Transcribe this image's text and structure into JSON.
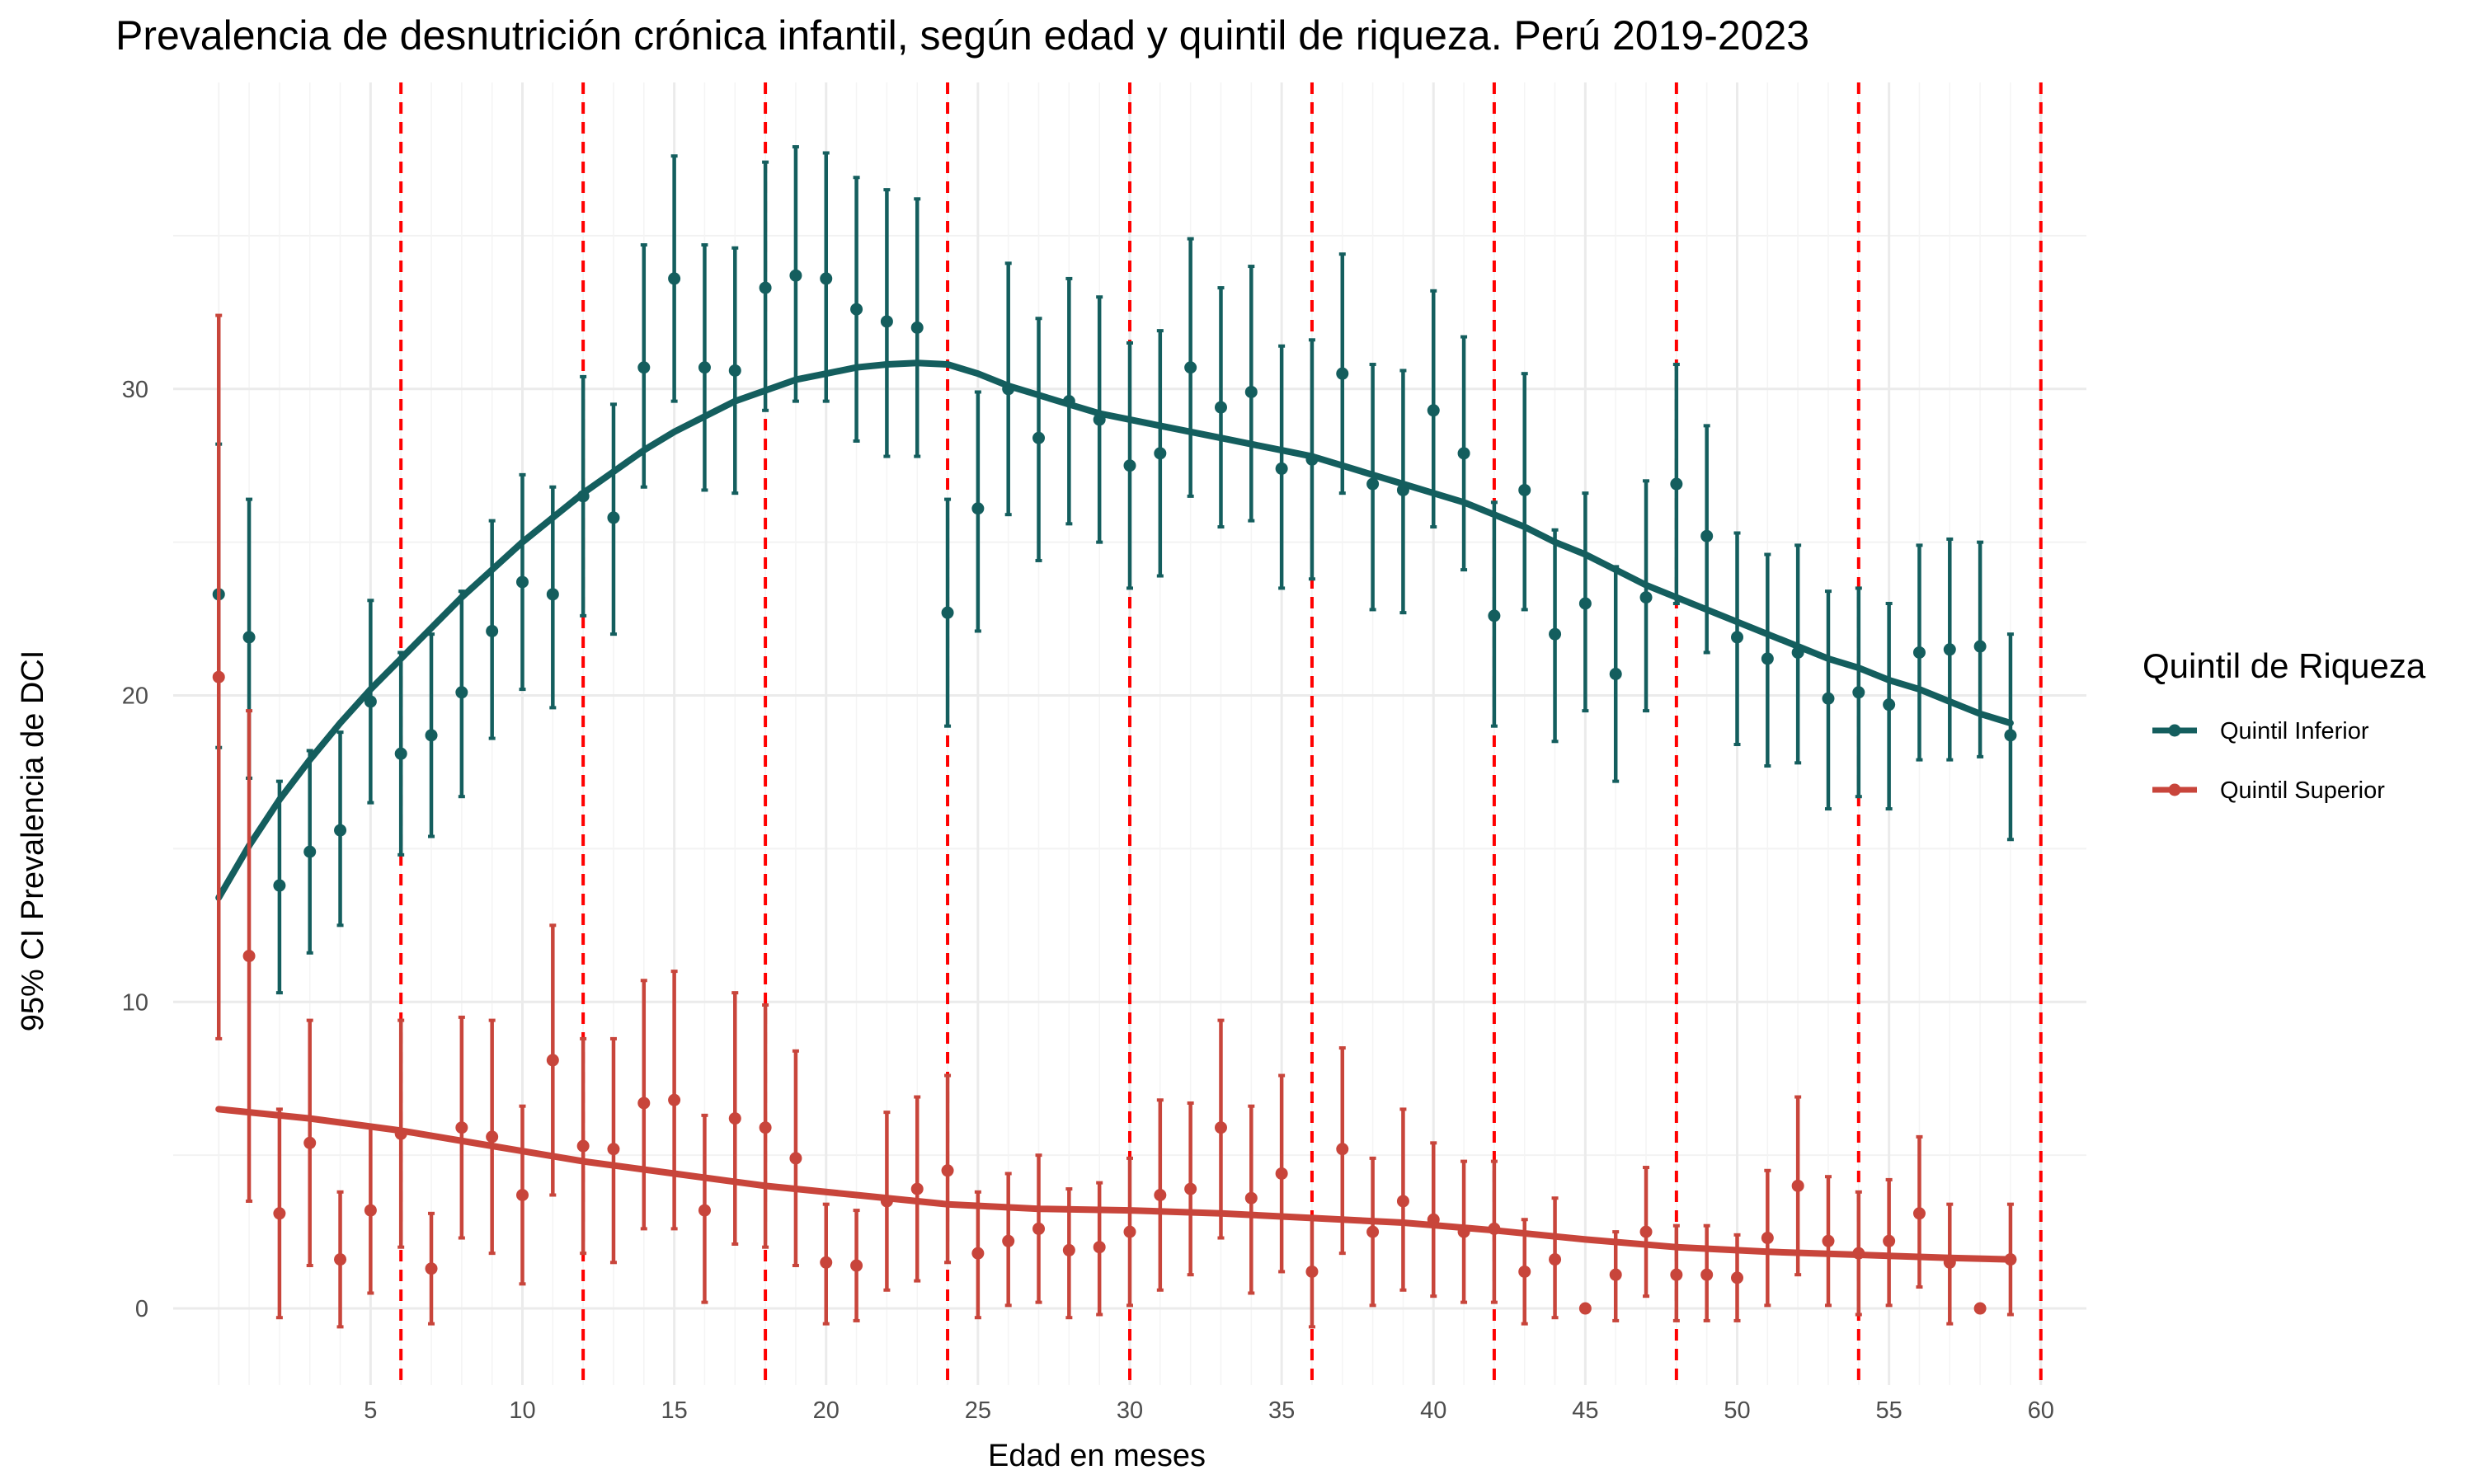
{
  "chart_data": {
    "type": "scatter",
    "title": "Prevalencia de desnutrición crónica infantil, según edad y quintil de riqueza. Perú 2019-2023",
    "xlabel": "Edad en meses",
    "ylabel": "95% CI Prevalencia de DCI",
    "xlim": [
      -1.5,
      61.5
    ],
    "ylim": [
      -2.5,
      40
    ],
    "x_ticks": [
      5,
      10,
      15,
      20,
      25,
      30,
      35,
      40,
      45,
      50,
      55,
      60
    ],
    "x_tick_labels": [
      "5",
      "10",
      "15",
      "20",
      "25",
      "30",
      "35",
      "40",
      "45",
      "50",
      "55",
      "60"
    ],
    "y_ticks": [
      0,
      10,
      20,
      30
    ],
    "y_tick_labels": [
      "0",
      "10",
      "20",
      "30"
    ],
    "grid": true,
    "vlines": [
      6,
      12,
      18,
      24,
      30,
      36,
      42,
      48,
      54,
      60
    ],
    "vline_color": "#ff0000",
    "legend": {
      "title": "Quintil de Riqueza",
      "position": "right",
      "entries": [
        "Quintil Inferior",
        "Quintil Superior"
      ]
    },
    "series": [
      {
        "name": "Quintil Inferior",
        "color": "#145e5e",
        "x": [
          0,
          1,
          2,
          3,
          4,
          5,
          6,
          7,
          8,
          9,
          10,
          11,
          12,
          13,
          14,
          15,
          16,
          17,
          18,
          19,
          20,
          21,
          22,
          23,
          24,
          25,
          26,
          27,
          28,
          29,
          30,
          31,
          32,
          33,
          34,
          35,
          36,
          37,
          38,
          39,
          40,
          41,
          42,
          43,
          44,
          45,
          46,
          47,
          48,
          49,
          50,
          51,
          52,
          53,
          54,
          55,
          56,
          57,
          58,
          59
        ],
        "y": [
          23.3,
          21.9,
          13.8,
          14.9,
          15.6,
          19.8,
          18.1,
          18.7,
          20.1,
          22.1,
          23.7,
          23.3,
          26.5,
          25.8,
          30.7,
          33.6,
          30.7,
          30.6,
          33.3,
          33.7,
          33.6,
          32.6,
          32.2,
          32.0,
          22.7,
          26.1,
          30.0,
          28.4,
          29.6,
          29.0,
          27.5,
          27.9,
          30.7,
          29.4,
          29.9,
          27.4,
          27.7,
          30.5,
          26.9,
          26.7,
          29.3,
          27.9,
          22.6,
          26.7,
          22.0,
          23.0,
          20.7,
          23.2,
          26.9,
          25.2,
          21.9,
          21.2,
          21.4,
          19.9,
          20.1,
          19.7,
          21.4,
          21.5,
          21.6,
          18.7
        ],
        "ci_low": [
          18.3,
          17.3,
          10.3,
          11.6,
          12.5,
          16.5,
          14.8,
          15.4,
          16.7,
          18.6,
          20.2,
          19.6,
          22.6,
          22.0,
          26.8,
          29.6,
          26.7,
          26.6,
          29.3,
          29.6,
          29.6,
          28.3,
          27.8,
          27.8,
          19.0,
          22.1,
          25.9,
          24.4,
          25.6,
          25.0,
          23.5,
          23.9,
          26.5,
          25.5,
          25.7,
          23.5,
          23.8,
          26.6,
          22.8,
          22.7,
          25.5,
          24.1,
          19.0,
          22.8,
          18.5,
          19.5,
          17.2,
          19.5,
          23.0,
          21.4,
          18.4,
          17.7,
          17.8,
          16.3,
          16.7,
          16.3,
          17.9,
          17.9,
          18.0,
          15.3
        ],
        "ci_high": [
          28.2,
          26.4,
          17.2,
          18.2,
          18.8,
          23.1,
          21.4,
          22.0,
          23.4,
          25.7,
          27.2,
          26.8,
          30.4,
          29.5,
          34.7,
          37.6,
          34.7,
          34.6,
          37.4,
          37.9,
          37.7,
          36.9,
          36.5,
          36.2,
          26.4,
          29.9,
          34.1,
          32.3,
          33.6,
          33.0,
          31.5,
          31.9,
          34.9,
          33.3,
          34.0,
          31.4,
          31.6,
          34.4,
          30.8,
          30.6,
          33.2,
          31.7,
          26.3,
          30.5,
          25.4,
          26.6,
          24.2,
          27.0,
          30.8,
          28.8,
          25.3,
          24.6,
          24.9,
          23.4,
          23.5,
          23.0,
          24.9,
          25.1,
          25.0,
          22.0
        ],
        "smooth": [
          [
            0,
            13.4
          ],
          [
            1,
            15.1
          ],
          [
            2,
            16.6
          ],
          [
            3,
            17.9
          ],
          [
            4,
            19.1
          ],
          [
            5,
            20.2
          ],
          [
            6,
            21.2
          ],
          [
            7,
            22.2
          ],
          [
            8,
            23.2
          ],
          [
            9,
            24.1
          ],
          [
            10,
            25.0
          ],
          [
            11,
            25.8
          ],
          [
            12,
            26.6
          ],
          [
            13,
            27.3
          ],
          [
            14,
            28.0
          ],
          [
            15,
            28.6
          ],
          [
            16,
            29.1
          ],
          [
            17,
            29.6
          ],
          [
            18,
            29.95
          ],
          [
            19,
            30.3
          ],
          [
            20,
            30.5
          ],
          [
            21,
            30.7
          ],
          [
            22,
            30.8
          ],
          [
            23,
            30.85
          ],
          [
            24,
            30.8
          ],
          [
            25,
            30.5
          ],
          [
            26,
            30.1
          ],
          [
            27,
            29.8
          ],
          [
            28,
            29.5
          ],
          [
            29,
            29.2
          ],
          [
            30,
            29.0
          ],
          [
            31,
            28.8
          ],
          [
            32,
            28.6
          ],
          [
            33,
            28.4
          ],
          [
            34,
            28.2
          ],
          [
            35,
            28.0
          ],
          [
            36,
            27.8
          ],
          [
            37,
            27.5
          ],
          [
            38,
            27.2
          ],
          [
            39,
            26.9
          ],
          [
            40,
            26.6
          ],
          [
            41,
            26.3
          ],
          [
            42,
            25.9
          ],
          [
            43,
            25.5
          ],
          [
            44,
            25.0
          ],
          [
            45,
            24.6
          ],
          [
            46,
            24.1
          ],
          [
            47,
            23.6
          ],
          [
            48,
            23.2
          ],
          [
            49,
            22.8
          ],
          [
            50,
            22.4
          ],
          [
            51,
            22.0
          ],
          [
            52,
            21.6
          ],
          [
            53,
            21.2
          ],
          [
            54,
            20.9
          ],
          [
            55,
            20.5
          ],
          [
            56,
            20.2
          ],
          [
            57,
            19.8
          ],
          [
            58,
            19.4
          ],
          [
            59,
            19.1
          ]
        ]
      },
      {
        "name": "Quintil Superior",
        "color": "#c8453b",
        "x": [
          0,
          1,
          2,
          3,
          4,
          5,
          6,
          7,
          8,
          9,
          10,
          11,
          12,
          13,
          14,
          15,
          16,
          17,
          18,
          19,
          20,
          21,
          22,
          23,
          24,
          25,
          26,
          27,
          28,
          29,
          30,
          31,
          32,
          33,
          34,
          35,
          36,
          37,
          38,
          39,
          40,
          41,
          42,
          43,
          44,
          45,
          46,
          47,
          48,
          49,
          50,
          51,
          52,
          53,
          54,
          55,
          56,
          57,
          58,
          59
        ],
        "y": [
          20.6,
          11.5,
          3.1,
          5.4,
          1.6,
          3.2,
          5.7,
          1.3,
          5.9,
          5.6,
          3.7,
          8.1,
          5.3,
          5.2,
          6.7,
          6.8,
          3.2,
          6.2,
          5.9,
          4.9,
          1.5,
          1.4,
          3.5,
          3.9,
          4.5,
          1.8,
          2.2,
          2.6,
          1.9,
          2.0,
          2.5,
          3.7,
          3.9,
          5.9,
          3.6,
          4.4,
          1.2,
          5.2,
          2.5,
          3.5,
          2.9,
          2.5,
          2.6,
          1.2,
          1.6,
          0.0,
          1.1,
          2.5,
          1.1,
          1.1,
          1.0,
          2.3,
          4.0,
          2.2,
          1.8,
          2.2,
          3.1,
          1.5,
          0.0,
          1.6
        ],
        "ci_low": [
          8.8,
          3.5,
          -0.3,
          1.4,
          -0.6,
          0.5,
          2.0,
          -0.5,
          2.3,
          1.8,
          0.8,
          3.7,
          1.8,
          1.5,
          2.6,
          2.6,
          0.2,
          2.1,
          2.0,
          1.4,
          -0.5,
          -0.4,
          0.6,
          0.9,
          1.5,
          -0.3,
          0.1,
          0.2,
          -0.3,
          -0.2,
          0.1,
          0.6,
          1.1,
          2.3,
          0.5,
          1.2,
          -0.6,
          1.8,
          0.1,
          0.6,
          0.4,
          0.2,
          0.2,
          -0.5,
          -0.3,
          0.0,
          -0.4,
          0.4,
          -0.4,
          -0.4,
          -0.4,
          0.1,
          1.1,
          0.1,
          -0.2,
          0.1,
          0.7,
          -0.5,
          0.0,
          -0.2
        ],
        "ci_high": [
          32.4,
          19.5,
          6.5,
          9.4,
          3.8,
          5.9,
          9.4,
          3.1,
          9.5,
          9.4,
          6.6,
          12.5,
          8.8,
          8.8,
          10.7,
          11.0,
          6.3,
          10.3,
          9.9,
          8.4,
          3.4,
          3.2,
          6.4,
          6.9,
          7.6,
          3.8,
          4.4,
          5.0,
          3.9,
          4.1,
          4.9,
          6.8,
          6.7,
          9.4,
          6.6,
          7.6,
          3.0,
          8.5,
          4.9,
          6.5,
          5.4,
          4.8,
          4.8,
          2.9,
          3.6,
          0.0,
          2.5,
          4.6,
          2.7,
          2.7,
          2.4,
          4.5,
          6.9,
          4.3,
          3.8,
          4.2,
          5.6,
          3.4,
          0.0,
          3.4
        ],
        "smooth": [
          [
            0,
            6.5
          ],
          [
            3,
            6.2
          ],
          [
            6,
            5.8
          ],
          [
            9,
            5.3
          ],
          [
            12,
            4.8
          ],
          [
            15,
            4.4
          ],
          [
            18,
            4.0
          ],
          [
            21,
            3.7
          ],
          [
            24,
            3.4
          ],
          [
            27,
            3.25
          ],
          [
            30,
            3.2
          ],
          [
            33,
            3.1
          ],
          [
            36,
            2.95
          ],
          [
            39,
            2.8
          ],
          [
            42,
            2.55
          ],
          [
            45,
            2.25
          ],
          [
            48,
            2.0
          ],
          [
            51,
            1.85
          ],
          [
            54,
            1.75
          ],
          [
            57,
            1.65
          ],
          [
            59,
            1.6
          ]
        ]
      }
    ]
  }
}
